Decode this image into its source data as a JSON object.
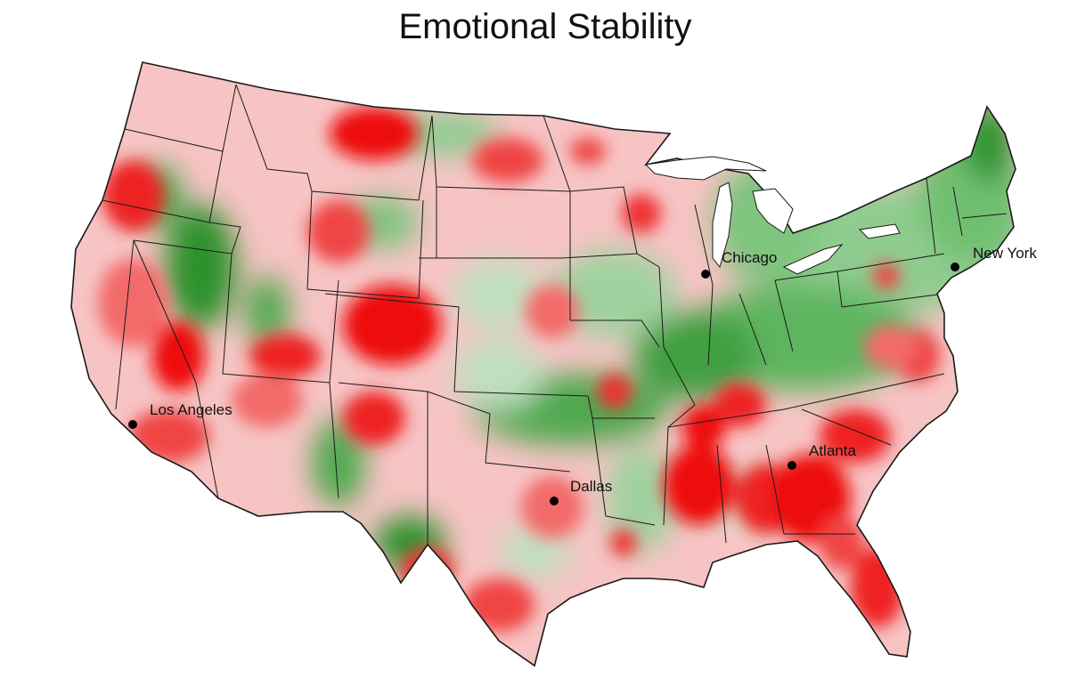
{
  "title": "Emotional Stability",
  "colors": {
    "strong_red": "#ee1111",
    "mid_red": "#f36a6a",
    "light_red": "#fbbcbc",
    "pale_green": "#cfe9cf",
    "light_green": "#8fcc8f",
    "dark_green": "#1e8a1e",
    "border": "#1a1a1a",
    "city_dot": "#000000"
  },
  "cities": [
    {
      "name": "Chicago"
    },
    {
      "name": "New York"
    },
    {
      "name": "Los Angeles"
    },
    {
      "name": "Dallas"
    },
    {
      "name": "Atlanta"
    }
  ]
}
